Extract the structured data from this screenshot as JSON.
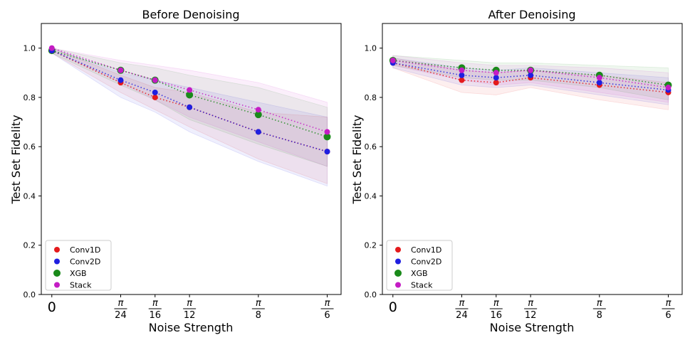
{
  "chart_data": [
    {
      "type": "scatter",
      "title": "Before Denoising",
      "xlabel": "Noise Strength",
      "ylabel": "Test Set Fidelity",
      "xlim": [
        -0.02,
        0.55
      ],
      "ylim": [
        0.0,
        1.1
      ],
      "x": [
        0,
        0.1309,
        0.1963,
        0.2618,
        0.3927,
        0.5236
      ],
      "x_ticks": [
        {
          "value": 0,
          "num": "0",
          "den": ""
        },
        {
          "value": 0.1309,
          "num": "π",
          "den": "24"
        },
        {
          "value": 0.1963,
          "num": "π",
          "den": "16"
        },
        {
          "value": 0.2618,
          "num": "π",
          "den": "12"
        },
        {
          "value": 0.3927,
          "num": "π",
          "den": "8"
        },
        {
          "value": 0.5236,
          "num": "π",
          "den": "6"
        }
      ],
      "y_ticks": [
        "0.0",
        "0.2",
        "0.4",
        "0.6",
        "0.8",
        "1.0"
      ],
      "legend_position": "lower-left",
      "series": [
        {
          "name": "Conv1D",
          "color": "#e41a1c",
          "marker_size": "small",
          "values": [
            0.99,
            0.86,
            0.8,
            0.76,
            0.66,
            0.58
          ],
          "upper": [
            1.0,
            0.89,
            0.84,
            0.82,
            0.74,
            0.72
          ],
          "lower": [
            0.98,
            0.82,
            0.75,
            0.68,
            0.55,
            0.45
          ]
        },
        {
          "name": "Conv2D",
          "color": "#1f1fe0",
          "marker_size": "small",
          "values": [
            0.99,
            0.87,
            0.82,
            0.76,
            0.66,
            0.58
          ],
          "upper": [
            1.0,
            0.9,
            0.87,
            0.84,
            0.78,
            0.72
          ],
          "lower": [
            0.98,
            0.8,
            0.74,
            0.66,
            0.54,
            0.44
          ]
        },
        {
          "name": "XGB",
          "color": "#1a8a1a",
          "marker_size": "large",
          "values": [
            0.99,
            0.91,
            0.87,
            0.81,
            0.73,
            0.64
          ],
          "upper": [
            1.0,
            0.94,
            0.92,
            0.89,
            0.84,
            0.76
          ],
          "lower": [
            0.98,
            0.85,
            0.79,
            0.71,
            0.61,
            0.52
          ]
        },
        {
          "name": "Stack",
          "color": "#c41cc4",
          "marker_size": "small",
          "values": [
            1.0,
            0.91,
            0.87,
            0.83,
            0.75,
            0.66
          ],
          "upper": [
            1.0,
            0.95,
            0.93,
            0.91,
            0.86,
            0.78
          ],
          "lower": [
            0.99,
            0.86,
            0.79,
            0.72,
            0.62,
            0.52
          ]
        }
      ]
    },
    {
      "type": "scatter",
      "title": "After Denoising",
      "xlabel": "Noise Strength",
      "ylabel": "Test Set Fidelity",
      "xlim": [
        -0.02,
        0.55
      ],
      "ylim": [
        0.0,
        1.1
      ],
      "x": [
        0,
        0.1309,
        0.1963,
        0.2618,
        0.3927,
        0.5236
      ],
      "x_ticks": [
        {
          "value": 0,
          "num": "0",
          "den": ""
        },
        {
          "value": 0.1309,
          "num": "π",
          "den": "24"
        },
        {
          "value": 0.1963,
          "num": "π",
          "den": "16"
        },
        {
          "value": 0.2618,
          "num": "π",
          "den": "12"
        },
        {
          "value": 0.3927,
          "num": "π",
          "den": "8"
        },
        {
          "value": 0.5236,
          "num": "π",
          "den": "6"
        }
      ],
      "y_ticks": [
        "0.0",
        "0.2",
        "0.4",
        "0.6",
        "0.8",
        "1.0"
      ],
      "legend_position": "lower-left",
      "series": [
        {
          "name": "Conv1D",
          "color": "#e41a1c",
          "marker_size": "small",
          "values": [
            0.94,
            0.87,
            0.86,
            0.88,
            0.85,
            0.82
          ],
          "upper": [
            0.96,
            0.91,
            0.9,
            0.91,
            0.89,
            0.86
          ],
          "lower": [
            0.92,
            0.82,
            0.81,
            0.84,
            0.79,
            0.75
          ]
        },
        {
          "name": "Conv2D",
          "color": "#1f1fe0",
          "marker_size": "small",
          "values": [
            0.94,
            0.89,
            0.88,
            0.89,
            0.86,
            0.83
          ],
          "upper": [
            0.96,
            0.92,
            0.91,
            0.92,
            0.9,
            0.88
          ],
          "lower": [
            0.92,
            0.85,
            0.84,
            0.85,
            0.81,
            0.77
          ]
        },
        {
          "name": "XGB",
          "color": "#1a8a1a",
          "marker_size": "large",
          "values": [
            0.95,
            0.92,
            0.91,
            0.91,
            0.89,
            0.85
          ],
          "upper": [
            0.97,
            0.95,
            0.94,
            0.94,
            0.93,
            0.92
          ],
          "lower": [
            0.93,
            0.88,
            0.87,
            0.87,
            0.84,
            0.79
          ]
        },
        {
          "name": "Stack",
          "color": "#c41cc4",
          "marker_size": "small",
          "values": [
            0.95,
            0.91,
            0.9,
            0.91,
            0.88,
            0.84
          ],
          "upper": [
            0.97,
            0.94,
            0.93,
            0.93,
            0.92,
            0.9
          ],
          "lower": [
            0.93,
            0.87,
            0.85,
            0.86,
            0.82,
            0.78
          ]
        }
      ]
    }
  ]
}
